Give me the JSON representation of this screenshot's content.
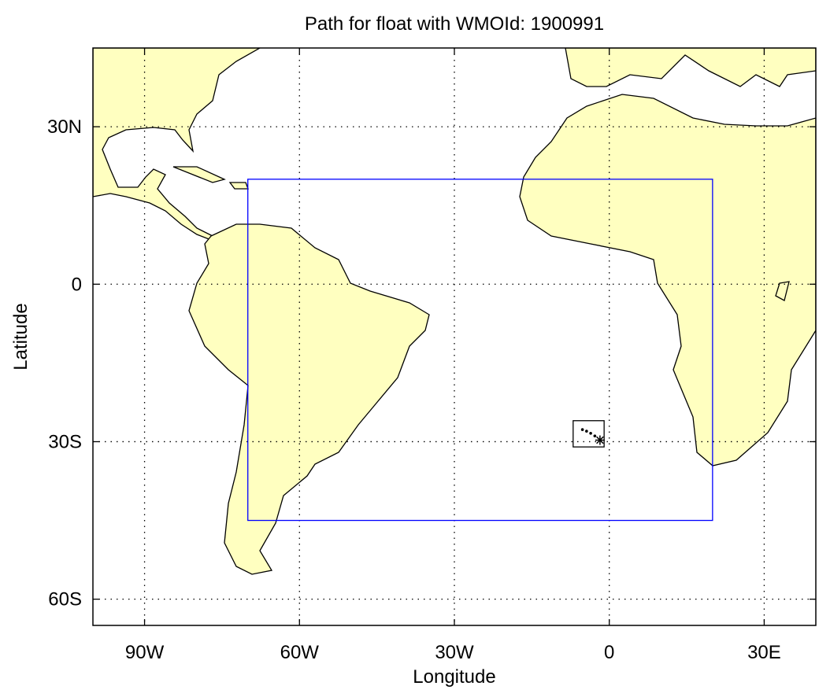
{
  "chart_data": {
    "type": "map",
    "title": "Path for float with WMOId: 1900991",
    "xlabel": "Longitude",
    "ylabel": "Latitude",
    "xlim": [
      -100,
      40
    ],
    "ylim": [
      -65,
      45
    ],
    "xticks": [
      {
        "value": -90,
        "label": "90W"
      },
      {
        "value": -60,
        "label": "60W"
      },
      {
        "value": -30,
        "label": "30W"
      },
      0,
      {
        "value": 30,
        "label": "30E"
      }
    ],
    "yticks": [
      {
        "value": -60,
        "label": "60S"
      },
      {
        "value": -30,
        "label": "30S"
      },
      0,
      {
        "value": 30,
        "label": "30N"
      }
    ],
    "grid": true,
    "land_color": "#ffffc0",
    "boxes": [
      {
        "color": "#0000ff",
        "lonlim": [
          -70,
          20
        ],
        "latlim": [
          -45,
          20
        ]
      },
      {
        "color": "#000000",
        "lonlim": [
          -7,
          -1
        ],
        "latlim": [
          -31,
          -26
        ]
      }
    ],
    "track": {
      "color": "#000000",
      "x": [
        -5.2,
        -4.4,
        -3.6,
        -2.8,
        -1.8
      ],
      "y": [
        -27.7,
        -28.0,
        -28.4,
        -28.9,
        -29.7
      ]
    }
  }
}
